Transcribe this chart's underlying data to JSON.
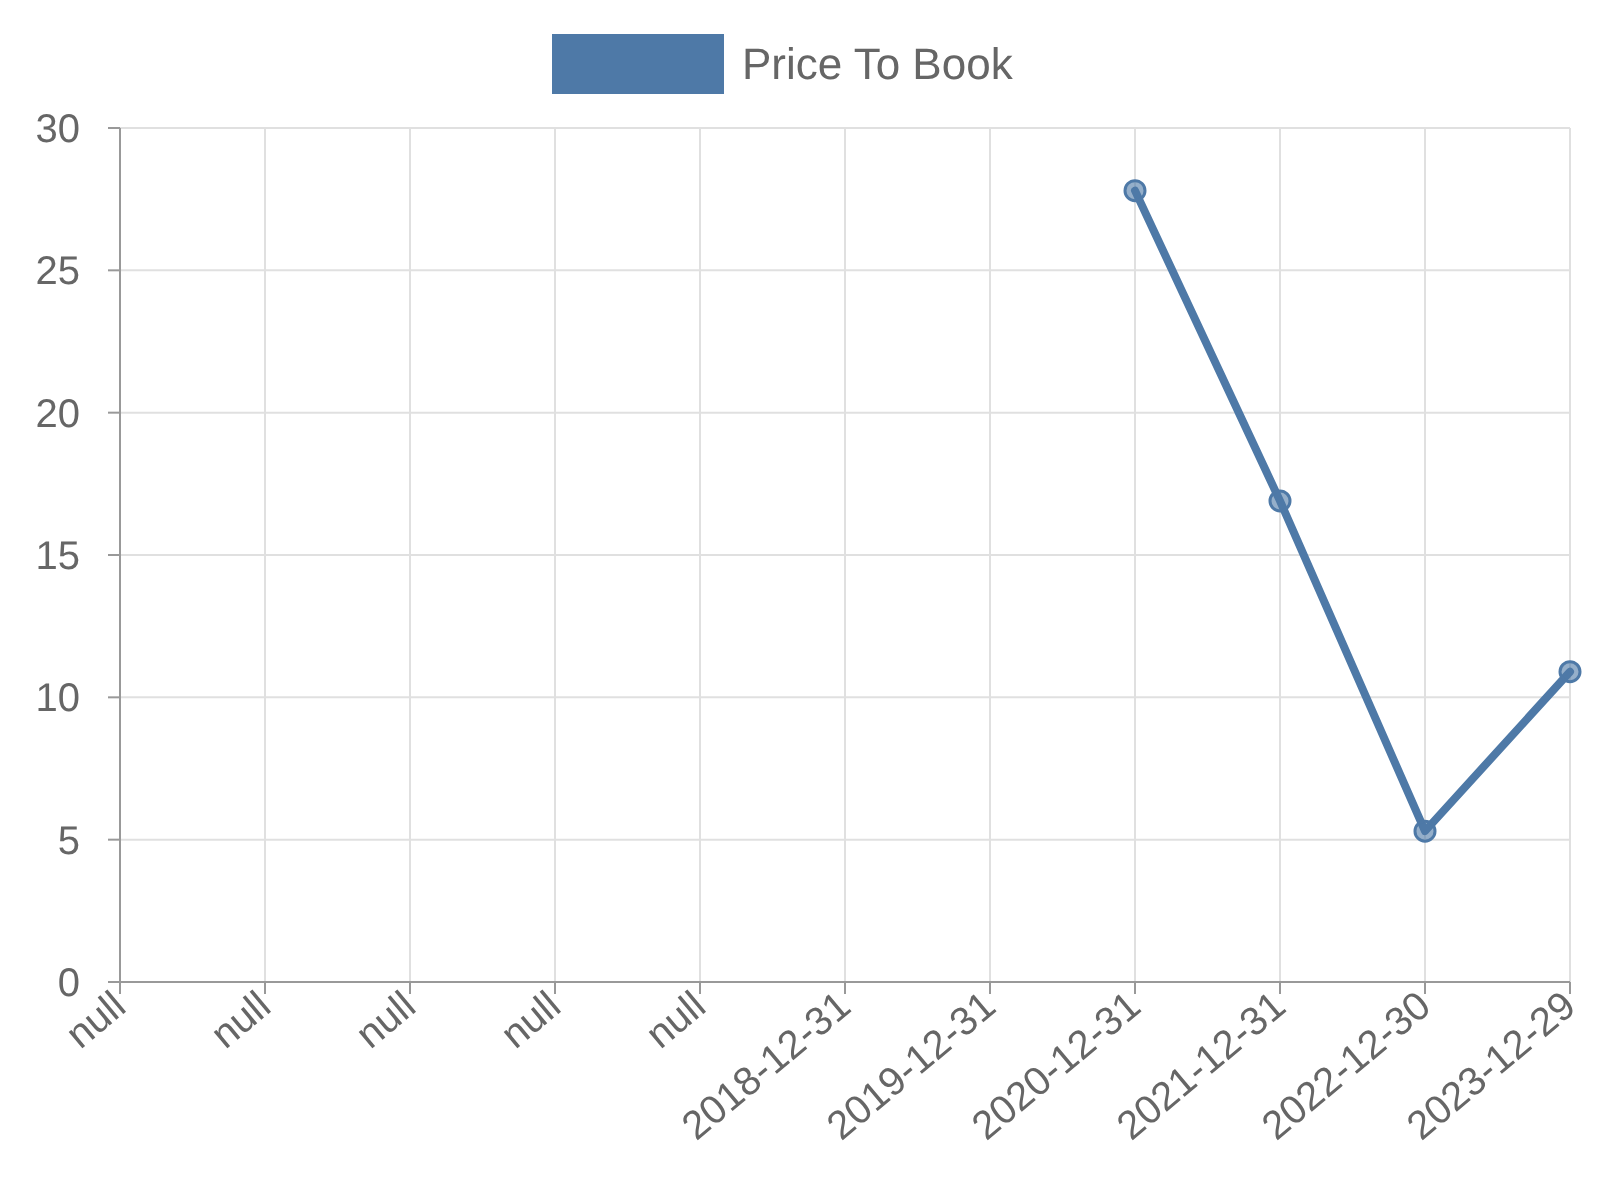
{
  "chart_data": {
    "type": "line",
    "categories": [
      "null",
      "null",
      "null",
      "null",
      "null",
      "2018-12-31",
      "2019-12-31",
      "2020-12-31",
      "2021-12-31",
      "2022-12-30",
      "2023-12-29"
    ],
    "series": [
      {
        "name": "Price To Book",
        "color": "#4e79a7",
        "values": [
          null,
          null,
          null,
          null,
          null,
          null,
          null,
          27.8,
          16.9,
          5.3,
          10.9
        ]
      }
    ],
    "ylim": [
      0,
      30
    ],
    "yticks": [
      0,
      5,
      10,
      15,
      20,
      25,
      30
    ],
    "grid": true,
    "legend": "top",
    "marker": "circle",
    "line_style": "solid"
  }
}
